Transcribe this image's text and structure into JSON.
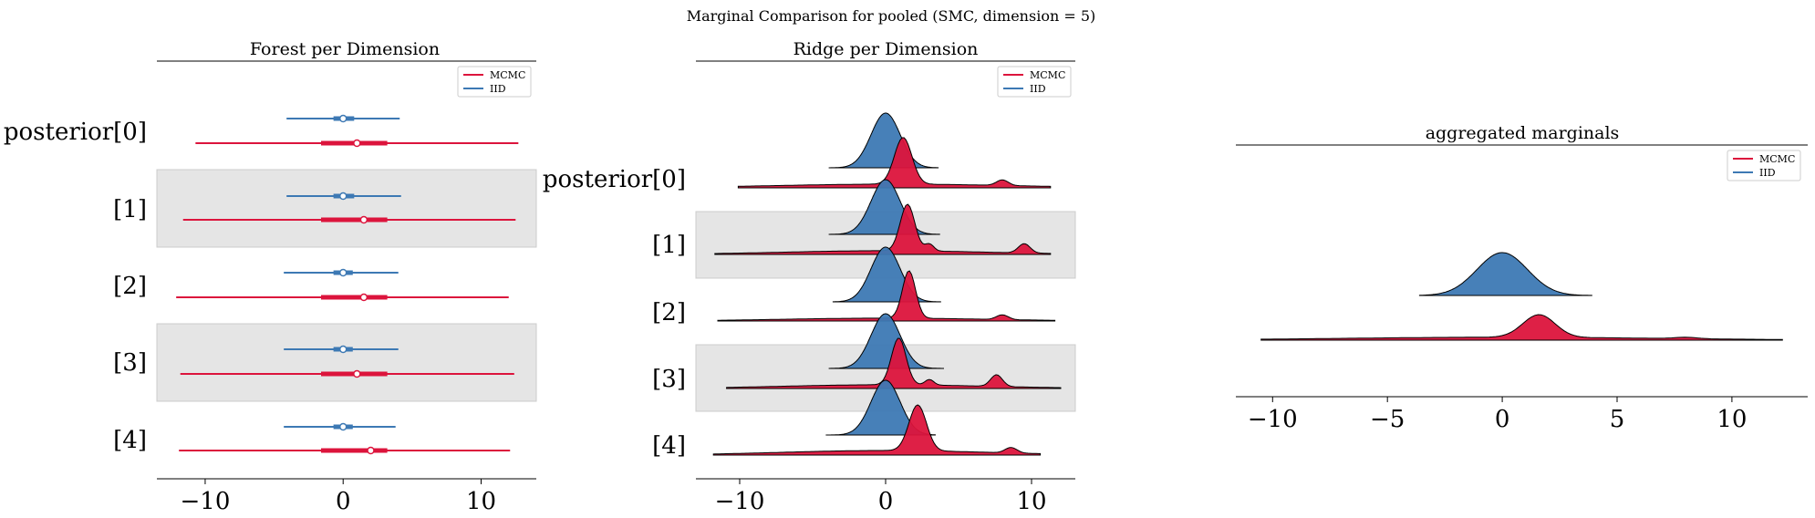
{
  "figure": {
    "suptitle": "Marginal Comparison for pooled (SMC, dimension = 5)"
  },
  "legend": [
    {
      "label": "MCMC",
      "color": "#dc143c"
    },
    {
      "label": "IID",
      "color": "#3d79b4"
    }
  ],
  "colors": {
    "mcmc": "#dc143c",
    "iid": "#3d79b4",
    "band": "#e5e5e5"
  },
  "chart_data": [
    {
      "type": "forest",
      "title": "Forest per Dimension",
      "row_labels": [
        "posterior[0]",
        "[1]",
        "[2]",
        "[3]",
        "[4]"
      ],
      "xlim": [
        -13.5,
        14.0
      ],
      "xticks": [
        "−10",
        "0",
        "10"
      ],
      "xtick_values": [
        -10,
        0,
        10
      ],
      "shaded_rows": [
        1,
        3
      ],
      "legend_position": "upper right",
      "series": [
        {
          "name": "IID",
          "rows": [
            {
              "min": -4.1,
              "q1": -0.7,
              "median": 0.0,
              "q3": 0.8,
              "max": 4.1
            },
            {
              "min": -4.1,
              "q1": -0.7,
              "median": 0.0,
              "q3": 0.8,
              "max": 4.2
            },
            {
              "min": -4.3,
              "q1": -0.7,
              "median": 0.0,
              "q3": 0.7,
              "max": 4.0
            },
            {
              "min": -4.3,
              "q1": -0.7,
              "median": 0.0,
              "q3": 0.7,
              "max": 4.0
            },
            {
              "min": -4.3,
              "q1": -0.7,
              "median": 0.0,
              "q3": 0.7,
              "max": 3.8
            }
          ]
        },
        {
          "name": "MCMC",
          "rows": [
            {
              "min": -10.7,
              "q1": -1.6,
              "median": 1.0,
              "q3": 3.2,
              "max": 12.7
            },
            {
              "min": -11.6,
              "q1": -1.6,
              "median": 1.5,
              "q3": 3.2,
              "max": 12.5
            },
            {
              "min": -12.1,
              "q1": -1.6,
              "median": 1.5,
              "q3": 3.2,
              "max": 12.0
            },
            {
              "min": -11.8,
              "q1": -1.6,
              "median": 1.0,
              "q3": 3.2,
              "max": 12.4
            },
            {
              "min": -11.9,
              "q1": -1.6,
              "median": 2.0,
              "q3": 3.2,
              "max": 12.1
            }
          ]
        }
      ]
    },
    {
      "type": "ridge",
      "title": "Ridge per Dimension",
      "row_labels": [
        "posterior[0]",
        "[1]",
        "[2]",
        "[3]",
        "[4]"
      ],
      "xlim": [
        -13.0,
        13.0
      ],
      "xticks": [
        "−10",
        "0",
        "10"
      ],
      "xtick_values": [
        -10,
        0,
        10
      ],
      "shaded_rows": [
        1,
        3
      ],
      "legend_position": "upper right",
      "series": [
        {
          "name": "IID",
          "rows": [
            {
              "range": [
                -3.9,
                3.6
              ],
              "components": [
                [
                  0.0,
                  1.0,
                  1.0
                ]
              ]
            },
            {
              "range": [
                -3.9,
                3.7
              ],
              "components": [
                [
                  0.0,
                  1.0,
                  1.0
                ]
              ]
            },
            {
              "range": [
                -3.6,
                3.8
              ],
              "components": [
                [
                  0.0,
                  1.0,
                  1.0
                ]
              ]
            },
            {
              "range": [
                -3.9,
                4.0
              ],
              "components": [
                [
                  0.0,
                  1.0,
                  1.0
                ]
              ]
            },
            {
              "range": [
                -4.1,
                3.4
              ],
              "components": [
                [
                  0.0,
                  1.0,
                  1.0
                ]
              ]
            }
          ]
        },
        {
          "name": "MCMC",
          "rows": [
            {
              "range": [
                -10.1,
                11.3
              ],
              "components": [
                [
                  1.2,
                  0.6,
                  1.0
                ],
                [
                  0.5,
                  8.0,
                  0.08
                ],
                [
                  8.0,
                  0.4,
                  0.12
                ]
              ]
            },
            {
              "range": [
                -11.7,
                11.3
              ],
              "components": [
                [
                  1.5,
                  0.5,
                  1.0
                ],
                [
                  0.0,
                  7.0,
                  0.08
                ],
                [
                  9.5,
                  0.4,
                  0.2
                ],
                [
                  3.0,
                  0.3,
                  0.15
                ]
              ]
            },
            {
              "range": [
                -11.5,
                11.6
              ],
              "components": [
                [
                  1.6,
                  0.45,
                  1.0
                ],
                [
                  0.0,
                  7.0,
                  0.06
                ],
                [
                  8.0,
                  0.4,
                  0.1
                ]
              ]
            },
            {
              "range": [
                -10.9,
                12.0
              ],
              "components": [
                [
                  0.9,
                  0.5,
                  1.0
                ],
                [
                  0.0,
                  7.0,
                  0.08
                ],
                [
                  7.6,
                  0.4,
                  0.25
                ],
                [
                  3.0,
                  0.3,
                  0.12
                ]
              ]
            },
            {
              "range": [
                -11.8,
                10.6
              ],
              "components": [
                [
                  2.2,
                  0.6,
                  1.0
                ],
                [
                  0.0,
                  7.0,
                  0.1
                ],
                [
                  8.6,
                  0.4,
                  0.12
                ]
              ]
            }
          ]
        }
      ]
    },
    {
      "type": "ridge",
      "title": "aggregated marginals",
      "xlim": [
        -11.6,
        13.3
      ],
      "xticks": [
        "−10",
        "−5",
        "0",
        "5",
        "10"
      ],
      "xtick_values": [
        -10,
        -5,
        0,
        5,
        10
      ],
      "legend_position": "upper right",
      "series": [
        {
          "name": "IID",
          "range": [
            -3.6,
            3.9
          ],
          "components": [
            [
              0.0,
              1.1,
              1.0
            ]
          ]
        },
        {
          "name": "MCMC",
          "range": [
            -10.5,
            12.2
          ],
          "components": [
            [
              1.6,
              0.7,
              1.0
            ],
            [
              0.0,
              7.0,
              0.13
            ],
            [
              8.0,
              0.5,
              0.06
            ]
          ]
        }
      ]
    }
  ]
}
